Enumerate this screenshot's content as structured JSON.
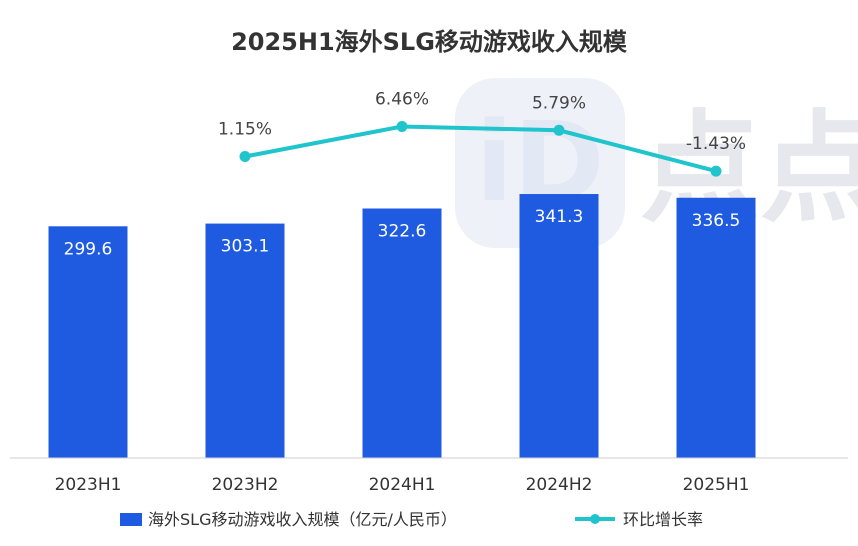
{
  "chart_data": {
    "type": "bar",
    "title": "2025H1海外SLG移动游戏收入规模",
    "categories": [
      "2023H1",
      "2023H2",
      "2024H1",
      "2024H2",
      "2025H1"
    ],
    "series": [
      {
        "name": "海外SLG移动游戏收入规模（亿元/人民币）",
        "type": "bar",
        "values": [
          299.6,
          303.1,
          322.6,
          341.3,
          336.5
        ],
        "labels": [
          "299.6",
          "303.1",
          "322.6",
          "341.3",
          "336.5"
        ],
        "color": "#1f5be0"
      },
      {
        "name": "环比增长率",
        "type": "line",
        "values": [
          null,
          1.15,
          6.46,
          5.79,
          -1.43
        ],
        "labels": [
          "",
          "1.15%",
          "6.46%",
          "5.79%",
          "-1.43%"
        ],
        "color": "#1fc4cc"
      }
    ],
    "ylim_bar": [
      0,
      400
    ],
    "ylim_line": [
      -30,
      10
    ],
    "legend_position": "bottom",
    "grid": false
  },
  "watermark": {
    "text": "点点",
    "color": "#e6e8ee"
  }
}
